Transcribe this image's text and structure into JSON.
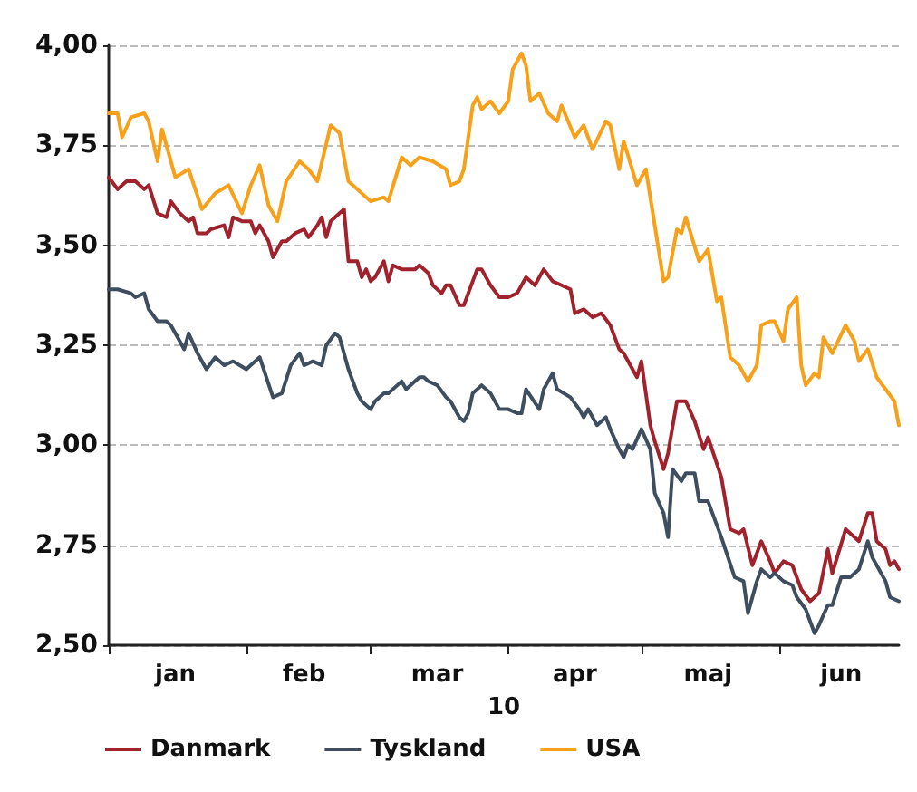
{
  "chart_data": {
    "type": "line",
    "xlabel": "10",
    "xlim": [
      "--01-01",
      "--06-28"
    ],
    "xticks": [
      {
        "value": "--01-01",
        "label": null
      },
      {
        "value": "--01-16",
        "label": "jan"
      },
      {
        "value": "--02-01",
        "label": null
      },
      {
        "value": "--02-14",
        "label": "feb"
      },
      {
        "value": "--03-01",
        "label": null
      },
      {
        "value": "--03-16",
        "label": "mar"
      },
      {
        "value": "--04-01",
        "label": null
      },
      {
        "value": "--04-16",
        "label": "apr"
      },
      {
        "value": "--05-01",
        "label": null
      },
      {
        "value": "--05-16",
        "label": "maj"
      },
      {
        "value": "--06-01",
        "label": null
      },
      {
        "value": "--06-15",
        "label": "jun"
      }
    ],
    "ylim": [
      2.5,
      4.0
    ],
    "yticks": [
      {
        "value": 2.5,
        "label": "2,50"
      },
      {
        "value": 2.75,
        "label": "2,75"
      },
      {
        "value": 3.0,
        "label": "3,00"
      },
      {
        "value": 3.25,
        "label": "3,25"
      },
      {
        "value": 3.5,
        "label": "3,50"
      },
      {
        "value": 3.75,
        "label": "3,75"
      },
      {
        "value": 4.0,
        "label": "4,00"
      }
    ],
    "grid": "y",
    "legend": "bottom",
    "marker": "none",
    "line_style": "solid",
    "series": [
      {
        "name": "Danmark",
        "color": "#a0222c",
        "x": [
          "--01-01",
          "--01-03",
          "--01-05",
          "--01-07",
          "--01-09",
          "--01-10",
          "--01-12",
          "--01-14",
          "--01-15",
          "--01-17",
          "--01-19",
          "--01-20",
          "--01-21",
          "--01-23",
          "--01-24",
          "--01-27",
          "--01-28",
          "--01-29",
          "--01-31",
          "--02-02",
          "--02-03",
          "--02-04",
          "--02-06",
          "--02-07",
          "--02-09",
          "--02-10",
          "--02-12",
          "--02-14",
          "--02-15",
          "--02-17",
          "--02-18",
          "--02-19",
          "--02-20",
          "--02-22",
          "--02-23",
          "--02-24",
          "--02-26",
          "--02-27",
          "--02-28",
          "--03-01",
          "--03-02",
          "--03-04",
          "--03-05",
          "--03-06",
          "--03-08",
          "--03-11",
          "--03-12",
          "--03-14",
          "--03-15",
          "--03-17",
          "--03-18",
          "--03-19",
          "--03-21",
          "--03-22",
          "--03-24",
          "--03-25",
          "--03-26",
          "--03-28",
          "--03-30",
          "--04-01",
          "--04-03",
          "--04-05",
          "--04-07",
          "--04-09",
          "--04-11",
          "--04-13",
          "--04-15",
          "--04-16",
          "--04-18",
          "--04-20",
          "--04-22",
          "--04-24",
          "--04-26",
          "--04-27",
          "--04-30",
          "--05-01",
          "--05-03",
          "--05-04",
          "--05-06",
          "--05-07",
          "--05-09",
          "--05-11",
          "--05-13",
          "--05-15",
          "--05-16",
          "--05-19",
          "--05-21",
          "--05-23",
          "--05-24",
          "--05-26",
          "--05-28",
          "--05-30",
          "--05-31",
          "--06-02",
          "--06-04",
          "--06-06",
          "--06-08",
          "--06-10",
          "--06-12",
          "--06-13",
          "--06-16",
          "--06-19",
          "--06-21",
          "--06-22",
          "--06-23",
          "--06-25",
          "--06-26",
          "--06-27",
          "--06-28"
        ],
        "values": [
          3.67,
          3.64,
          3.66,
          3.66,
          3.64,
          3.65,
          3.58,
          3.57,
          3.61,
          3.58,
          3.56,
          3.57,
          3.53,
          3.53,
          3.54,
          3.55,
          3.52,
          3.57,
          3.56,
          3.56,
          3.53,
          3.55,
          3.51,
          3.47,
          3.51,
          3.51,
          3.53,
          3.54,
          3.52,
          3.55,
          3.57,
          3.52,
          3.56,
          3.58,
          3.59,
          3.46,
          3.46,
          3.42,
          3.44,
          3.41,
          3.42,
          3.46,
          3.41,
          3.45,
          3.44,
          3.44,
          3.45,
          3.43,
          3.4,
          3.38,
          3.4,
          3.4,
          3.35,
          3.35,
          3.41,
          3.44,
          3.44,
          3.4,
          3.37,
          3.37,
          3.38,
          3.42,
          3.4,
          3.44,
          3.41,
          3.4,
          3.39,
          3.33,
          3.34,
          3.32,
          3.33,
          3.3,
          3.24,
          3.23,
          3.17,
          3.21,
          3.05,
          3.01,
          2.94,
          2.98,
          3.11,
          3.11,
          3.06,
          2.99,
          3.02,
          2.92,
          2.79,
          2.78,
          2.79,
          2.7,
          2.76,
          2.71,
          2.68,
          2.71,
          2.7,
          2.64,
          2.61,
          2.63,
          2.74,
          2.68,
          2.79,
          2.76,
          2.83,
          2.83,
          2.76,
          2.74,
          2.7,
          2.71,
          2.69
        ]
      },
      {
        "name": "Tyskland",
        "color": "#3f4e5e",
        "x": [
          "--01-01",
          "--01-03",
          "--01-06",
          "--01-07",
          "--01-09",
          "--01-10",
          "--01-12",
          "--01-14",
          "--01-15",
          "--01-17",
          "--01-18",
          "--01-19",
          "--01-21",
          "--01-23",
          "--01-25",
          "--01-27",
          "--01-29",
          "--02-01",
          "--02-02",
          "--02-04",
          "--02-07",
          "--02-09",
          "--02-11",
          "--02-13",
          "--02-14",
          "--02-16",
          "--02-18",
          "--02-19",
          "--02-21",
          "--02-22",
          "--02-24",
          "--02-26",
          "--02-27",
          "--03-01",
          "--03-02",
          "--03-04",
          "--03-05",
          "--03-07",
          "--03-08",
          "--03-09",
          "--03-12",
          "--03-13",
          "--03-14",
          "--03-16",
          "--03-18",
          "--03-19",
          "--03-21",
          "--03-22",
          "--03-23",
          "--03-24",
          "--03-26",
          "--03-28",
          "--03-30",
          "--04-01",
          "--04-03",
          "--04-04",
          "--04-05",
          "--04-08",
          "--04-09",
          "--04-11",
          "--04-12",
          "--04-15",
          "--04-17",
          "--04-18",
          "--04-19",
          "--04-21",
          "--04-23",
          "--04-24",
          "--04-26",
          "--04-27",
          "--04-28",
          "--04-29",
          "--05-01",
          "--05-03",
          "--05-04",
          "--05-06",
          "--05-07",
          "--05-08",
          "--05-10",
          "--05-11",
          "--05-13",
          "--05-14",
          "--05-16",
          "--05-17",
          "--05-19",
          "--05-22",
          "--05-24",
          "--05-25",
          "--05-27",
          "--05-28",
          "--05-30",
          "--05-31",
          "--06-02",
          "--06-04",
          "--06-05",
          "--06-07",
          "--06-09",
          "--06-10",
          "--06-12",
          "--06-13",
          "--06-15",
          "--06-17",
          "--06-19",
          "--06-21",
          "--06-22",
          "--06-25",
          "--06-26",
          "--06-28"
        ],
        "values": [
          3.39,
          3.39,
          3.38,
          3.37,
          3.38,
          3.34,
          3.31,
          3.31,
          3.3,
          3.26,
          3.24,
          3.28,
          3.23,
          3.19,
          3.22,
          3.2,
          3.21,
          3.19,
          3.2,
          3.22,
          3.12,
          3.13,
          3.2,
          3.23,
          3.2,
          3.21,
          3.2,
          3.25,
          3.28,
          3.27,
          3.19,
          3.13,
          3.11,
          3.09,
          3.11,
          3.13,
          3.13,
          3.15,
          3.16,
          3.14,
          3.17,
          3.17,
          3.16,
          3.15,
          3.12,
          3.11,
          3.07,
          3.06,
          3.08,
          3.13,
          3.15,
          3.13,
          3.09,
          3.09,
          3.08,
          3.08,
          3.14,
          3.09,
          3.14,
          3.18,
          3.14,
          3.12,
          3.09,
          3.07,
          3.09,
          3.05,
          3.07,
          3.04,
          2.99,
          2.97,
          3.0,
          2.99,
          3.04,
          2.99,
          2.88,
          2.83,
          2.77,
          2.94,
          2.91,
          2.93,
          2.93,
          2.86,
          2.86,
          2.83,
          2.77,
          2.67,
          2.66,
          2.58,
          2.66,
          2.69,
          2.67,
          2.68,
          2.66,
          2.65,
          2.62,
          2.59,
          2.53,
          2.55,
          2.6,
          2.6,
          2.67,
          2.67,
          2.69,
          2.76,
          2.72,
          2.66,
          2.62,
          2.61
        ]
      },
      {
        "name": "USA",
        "color": "#f7a11a",
        "x": [
          "--01-01",
          "--01-03",
          "--01-04",
          "--01-06",
          "--01-09",
          "--01-10",
          "--01-12",
          "--01-13",
          "--01-16",
          "--01-19",
          "--01-22",
          "--01-25",
          "--01-28",
          "--01-31",
          "--02-02",
          "--02-04",
          "--02-06",
          "--02-08",
          "--02-10",
          "--02-13",
          "--02-15",
          "--02-17",
          "--02-20",
          "--02-22",
          "--02-24",
          "--02-26",
          "--03-01",
          "--03-04",
          "--03-05",
          "--03-08",
          "--03-10",
          "--03-12",
          "--03-15",
          "--03-18",
          "--03-19",
          "--03-21",
          "--03-22",
          "--03-24",
          "--03-25",
          "--03-26",
          "--03-28",
          "--03-30",
          "--04-01",
          "--04-02",
          "--04-04",
          "--04-05",
          "--04-06",
          "--04-08",
          "--04-10",
          "--04-12",
          "--04-13",
          "--04-16",
          "--04-18",
          "--04-20",
          "--04-23",
          "--04-24",
          "--04-26",
          "--04-27",
          "--04-30",
          "--05-02",
          "--05-04",
          "--05-06",
          "--05-07",
          "--05-09",
          "--05-10",
          "--05-11",
          "--05-14",
          "--05-16",
          "--05-18",
          "--05-19",
          "--05-21",
          "--05-23",
          "--05-25",
          "--05-27",
          "--05-28",
          "--05-30",
          "--05-31",
          "--06-02",
          "--06-03",
          "--06-05",
          "--06-06",
          "--06-07",
          "--06-09",
          "--06-10",
          "--06-11",
          "--06-13",
          "--06-16",
          "--06-18",
          "--06-19",
          "--06-21",
          "--06-23",
          "--06-25",
          "--06-27",
          "--06-28"
        ],
        "values": [
          3.83,
          3.83,
          3.77,
          3.82,
          3.83,
          3.81,
          3.71,
          3.79,
          3.67,
          3.69,
          3.59,
          3.63,
          3.65,
          3.58,
          3.65,
          3.7,
          3.6,
          3.56,
          3.66,
          3.71,
          3.69,
          3.66,
          3.8,
          3.78,
          3.66,
          3.64,
          3.61,
          3.62,
          3.61,
          3.72,
          3.7,
          3.72,
          3.71,
          3.69,
          3.65,
          3.66,
          3.69,
          3.85,
          3.87,
          3.84,
          3.86,
          3.83,
          3.86,
          3.94,
          3.98,
          3.95,
          3.86,
          3.88,
          3.83,
          3.81,
          3.85,
          3.77,
          3.8,
          3.74,
          3.81,
          3.8,
          3.69,
          3.76,
          3.65,
          3.69,
          3.55,
          3.41,
          3.42,
          3.54,
          3.53,
          3.57,
          3.46,
          3.49,
          3.36,
          3.37,
          3.22,
          3.2,
          3.16,
          3.2,
          3.3,
          3.31,
          3.31,
          3.26,
          3.34,
          3.37,
          3.2,
          3.15,
          3.18,
          3.17,
          3.27,
          3.23,
          3.3,
          3.26,
          3.21,
          3.24,
          3.17,
          3.14,
          3.11,
          3.05
        ]
      }
    ]
  }
}
